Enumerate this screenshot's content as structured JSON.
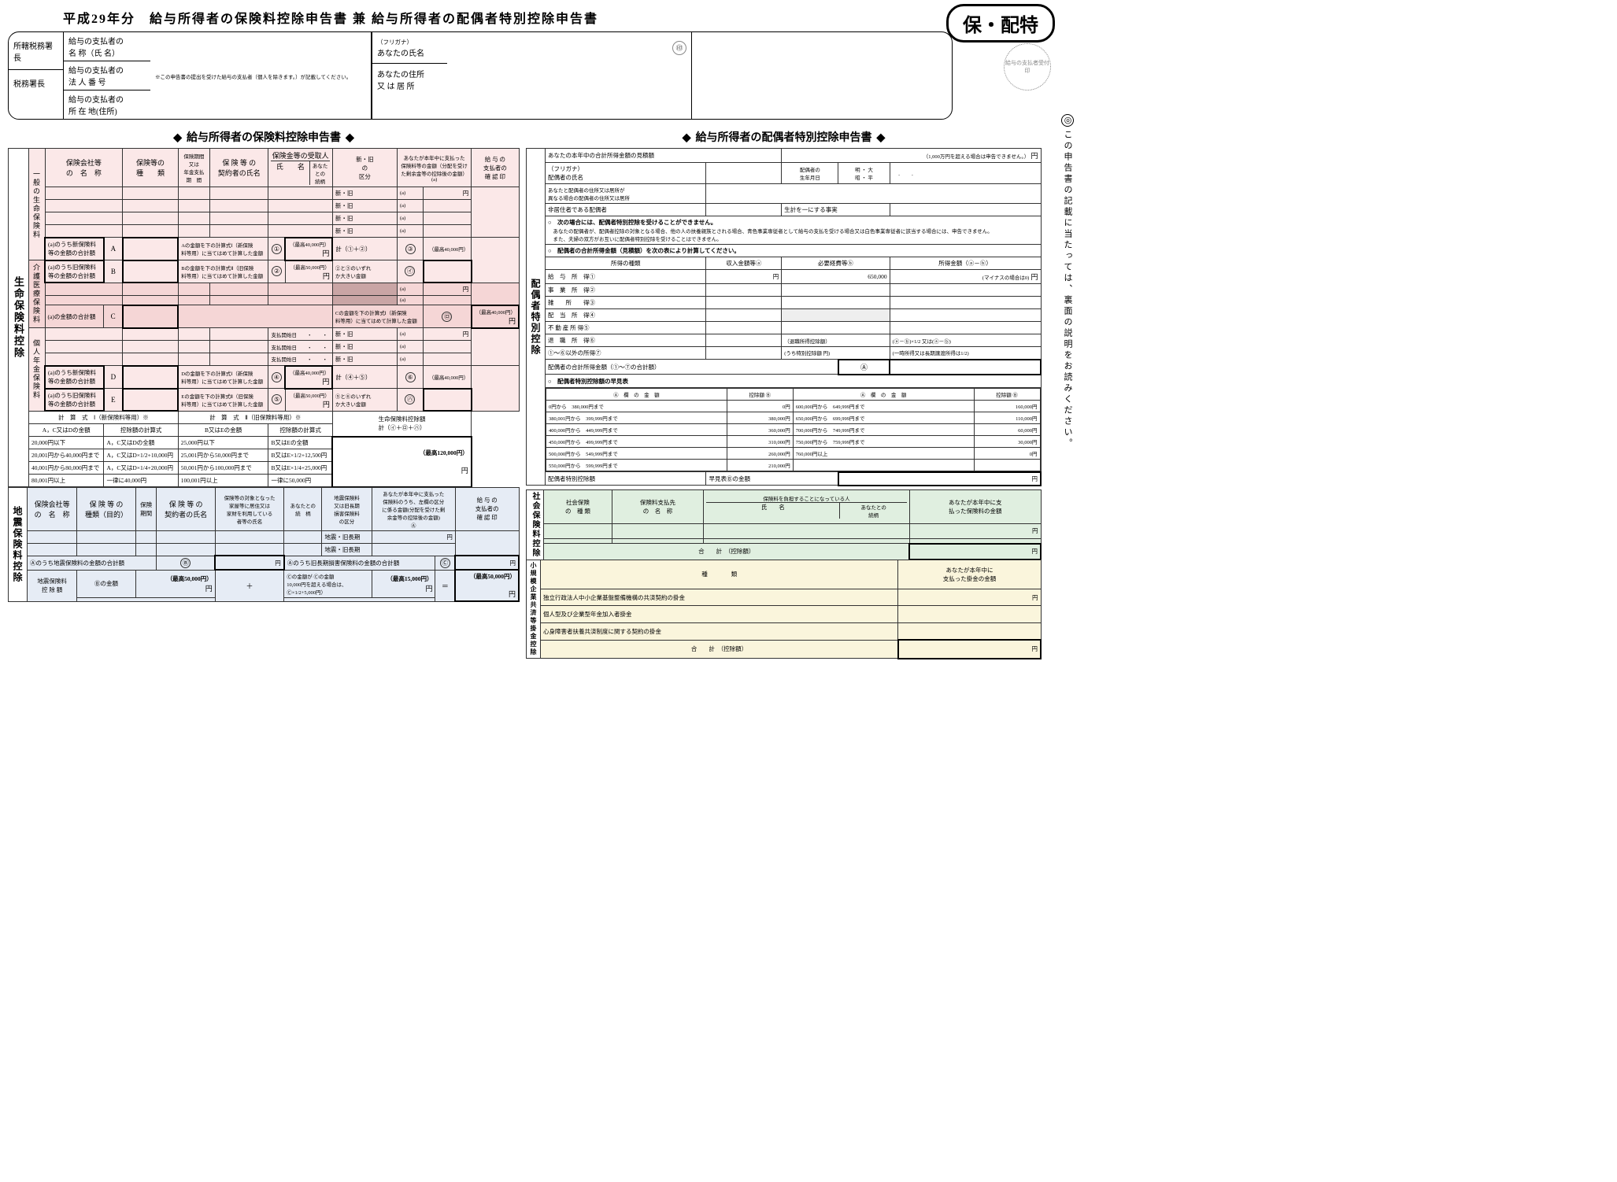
{
  "title": "平成29年分　給与所得者の保険料控除申告書 兼 給与所得者の配偶者特別控除申告書",
  "stamp": "保・配特",
  "seal_note": "給与の支払者受付印",
  "header": {
    "col1": {
      "r1": "所轄税務署長",
      "r2": "税務署長"
    },
    "col2": {
      "r1": "給与の支払者の\\n名 称（氏 名）",
      "r2": "給与の支払者の\\n法 人 番 号",
      "r3": "給与の支払者の\\n所 在 地(住所)",
      "note": "※この申告書の提出を受けた給与の支払者（個人を除きます。）が記載してください。"
    },
    "col3": {
      "r1a": "（フリガナ）",
      "r1b": "あなたの氏名",
      "r2": "あなたの住所\\n又 は 居 所",
      "seal": "㊞"
    }
  },
  "section_left_title": "給与所得者の保険料控除申告書",
  "section_right_title": "給与所得者の配偶者特別控除申告書",
  "vertical_note": "この申告書の記載に当たっては、裏面の説明をお読みください。",
  "life": {
    "side_label": "生命保険料控除",
    "sub_labels": {
      "general": "一般の生命保険料",
      "care": "介護医療保険料",
      "pension": "個人年金保険料"
    },
    "headers": {
      "h1": "保険会社等\\nの　名　称",
      "h2": "保険等の\\n種　　類",
      "h3": "保険期間\\n又は\\n年金支払\\n期　間",
      "h4": "保 険 等 の\\n契約者の氏名",
      "h5a": "保険金等の受取人",
      "h5b": "氏　　名",
      "h5c": "あなたとの\\n続柄",
      "h6": "新・旧\\nの\\n区分",
      "h7": "あなたが本年中に支払った\\n保険料等の金額（分配を受け\\nた剰余金等の控除後の金額）\\n(a)",
      "h8": "給 与 の\\n支払者の\\n確 認 印"
    },
    "new_old": "新・旧",
    "a_label": "(a)",
    "yen": "円",
    "rows_general": {
      "A": {
        "label": "(a)のうち新保険料\\n等の金額の合計額",
        "mark": "A"
      },
      "B": {
        "label": "(a)のうち旧保険料\\n等の金額の合計額",
        "mark": "B"
      },
      "A_calc": "Aの金額を下の計算式Ⅰ（新保険\\n料等用）に当てはめて計算した金額",
      "B_calc": "Bの金額を下の計算式Ⅱ（旧保険\\n料等用）に当てはめて計算した金額",
      "max1": "（最高40,000円）",
      "max2": "（最高50,000円）",
      "sum12": "計（①＋②）",
      "sum23": "②と③のいずれ\\nか大きい金額",
      "max3": "（最高40,000円）",
      "c1": "①",
      "c2": "②",
      "c3": "③",
      "ci": "㋑"
    },
    "rows_care": {
      "C": {
        "label": "(a)の金額の合計額",
        "mark": "C"
      },
      "C_calc": "Cの金額を下の計算式Ⅰ（新保険\\n料等用）に当てはめて計算した金額",
      "max": "（最高40,000円）",
      "cro": "㋺"
    },
    "pension_start": "支払開始日　　・　　・",
    "rows_pension": {
      "D": {
        "label": "(a)のうち新保険料\\n等の金額の合計額",
        "mark": "D"
      },
      "E": {
        "label": "(a)のうち旧保険料\\n等の金額の合計額",
        "mark": "E"
      },
      "D_calc": "Dの金額を下の計算式Ⅰ（新保険\\n料等用）に当てはめて計算した金額",
      "E_calc": "Eの金額を下の計算式Ⅱ（旧保険\\n料等用）に当てはめて計算した金額",
      "max1": "（最高40,000円）",
      "max2": "（最高50,000円）",
      "sum45": "計（④＋⑤）",
      "sum56": "⑤と⑥のいずれ\\nか大きい金額",
      "max3": "（最高40,000円）",
      "c4": "④",
      "c5": "⑤",
      "c6": "⑥",
      "cha": "㋩"
    },
    "calc_table": {
      "title1": "計　算　式　Ⅰ（新保険料等用）※",
      "title2": "計　算　式　Ⅱ（旧保険料等用）※",
      "total_label": "生命保険料控除額\\n計（㋑＋㋺＋㋩）",
      "total_max": "（最高120,000円）",
      "col1h": "A，C又はDの金額",
      "col2h": "控除額の計算式",
      "col3h": "B又はEの金額",
      "col4h": "控除額の計算式",
      "rows1": [
        [
          "20,000円以下",
          "A，C又はDの全額"
        ],
        [
          "20,001円から40,000円まで",
          "A，C又はD×1/2+10,000円"
        ],
        [
          "40,001円から80,000円まで",
          "A，C又はD×1/4+20,000円"
        ],
        [
          "80,001円以上",
          "一律に40,000円"
        ]
      ],
      "rows2": [
        [
          "25,000円以下",
          "B又はEの全額"
        ],
        [
          "25,001円から50,000円まで",
          "B又はE×1/2+12,500円"
        ],
        [
          "50,001円から100,000円まで",
          "B又はE×1/4+25,000円"
        ],
        [
          "100,001円以上",
          "一律に50,000円"
        ]
      ]
    }
  },
  "quake": {
    "side_label": "地震保険料控除",
    "headers": {
      "h1": "保険会社等\\nの　名　称",
      "h2": "保 険 等 の\\n種類（目的）",
      "h3": "保険\\n期間",
      "h4": "保 険 等 の\\n契約者の氏名",
      "h5a": "保険等の対象となった\\n家屋等に居住又は\\n家財を利用している\\n者等の氏名",
      "h5b": "あなたとの\\n続　柄",
      "h6": "地震保険料\\n又は旧長期\\n損害保険料\\nの区分",
      "h7": "あなたが本年中に支払った\\n保険料のうち、左欄の区分\\nに係る金額(分配を受けた剰\\n余金等の控除後の金額)\\nⒶ",
      "h8": "給 与 の\\n支払者の\\n確 認 印"
    },
    "opt": "地震・旧長期",
    "B_label": "Ⓐのうち地震保険料の金額の合計額",
    "B_mark": "Ⓑ",
    "C_label": "Ⓐのうち旧長期損害保険料の金額の合計額",
    "C_mark": "Ⓒ",
    "final": {
      "label": "地震保険料\\n控 除 額",
      "B_part": "Ⓑの金額",
      "B_max": "（最高50,000円）",
      "C_part": "Ⓒの金額\\n10,000円を超える場合は、\\nⒸ×1/2+5,000円）",
      "C_top": "Ⓒの金額が",
      "C_max": "（最高15,000円）",
      "eq": "＝",
      "plus": "＋",
      "total_max": "（最高50,000円）"
    }
  },
  "spouse": {
    "est_label": "あなたの本年中の合計所得金額の見積額",
    "est_note": "（1,000万円を超える場合は申告できません。）",
    "furigana": "（フリガナ）",
    "name_label": "配偶者の氏名",
    "birth_label": "配偶者の\\n生年月日",
    "era": "明 ・ 大\\n昭 ・ 平",
    "date_dots": "　.　　.　",
    "addr_label": "あなたと配偶者の住所又は居所が\\n異なる場合の配偶者の住所又は居所",
    "nonres_label": "非居住者である配偶者",
    "sameliv_label": "生計を一にする事実",
    "cannot_title": "○　次の場合には、配偶者特別控除を受けることができません。",
    "cannot_body": "　あなたの配偶者が、配偶者控除の対象となる場合、他の人の扶養親族とされる場合、青色事業専従者として給与の支払を受ける場合又は白色事業専従者に該当する場合には、申告できません。\\n　また、夫婦の双方がお互いに配偶者特別控除を受けることはできません。",
    "side_label": "配偶者特別控除",
    "calc_title": "○　配偶者の合計所得金額（見積額）を次の表により計算してください。",
    "calc_headers": {
      "h1": "所得の種類",
      "h2": "収入金額等ⓐ",
      "h3": "必要経費等ⓑ",
      "h4": "所得金額（ⓐ－ⓑ）"
    },
    "income_types": [
      "給　与　所　得①",
      "事　業　所　得②",
      "雑　　所　　得③",
      "配　当　所　得④",
      "不 動 産 所 得⑤",
      "退　職　所　得⑥",
      "①～⑥以外の所得⑦"
    ],
    "note6": "（退職所得控除額）",
    "formula6": "(ⓐ－ⓑ)×1/2 又は(ⓐ－ⓑ)",
    "note7a": "(うち特別控除額",
    "note7b": "(一時所得又は長期譲渡所得は1/2)",
    "value_b1": "650,000",
    "neg_note": "(マイナスの場合は0)",
    "total_label": "配偶者の合計所得金額（①～⑦の合計額）",
    "total_mark": "Ⓐ",
    "quick_title": "○　配偶者特別控除額の早見表",
    "quick_headers": {
      "a": "Ⓐ　欄　の　金　額",
      "b": "控除額 Ⓑ"
    },
    "quick_rows1": [
      [
        "0円から　380,000円まで",
        "0円"
      ],
      [
        "380,001円から　399,999円まで",
        "380,000円"
      ],
      [
        "400,000円から　449,999円まで",
        "360,000円"
      ],
      [
        "450,000円から　499,999円まで",
        "310,000円"
      ],
      [
        "500,000円から　549,999円まで",
        "260,000円"
      ],
      [
        "550,000円から　599,999円まで",
        "210,000円"
      ]
    ],
    "quick_rows2": [
      [
        "600,000円から　649,999円まで",
        "160,000円"
      ],
      [
        "650,000円から　699,999円まで",
        "110,000円"
      ],
      [
        "700,000円から　749,999円まで",
        "60,000円"
      ],
      [
        "750,000円から　759,999円まで",
        "30,000円"
      ],
      [
        "760,000円以上",
        "0円"
      ]
    ],
    "final_label": "配偶者特別控除額",
    "final_note": "早見表Ⓑの金額"
  },
  "social": {
    "side_label": "社会保険料控除",
    "headers": {
      "h1": "社会保険\\nの　種 類",
      "h2": "保険料支払先\\nの　名　称",
      "h3a": "保険料を負担することになっている人",
      "h3b": "氏　　名",
      "h3c": "あなたとの\\n続柄",
      "h4": "あなたが本年中に支\\n払った保険料の金額"
    },
    "total": "合　　計　（控除額）"
  },
  "small_biz": {
    "side_label": "小規模企業共済等掛金控除",
    "h1": "種　　　　類",
    "h2": "あなたが本年中に\\n支払った掛金の金額",
    "rows": [
      "独立行政法人中小企業基盤整備機構の共済契約の掛金",
      "個人型及び企業型年金加入者掛金",
      "心身障害者扶養共済制度に関する契約の掛金"
    ],
    "total": "合　　計　（控除額）"
  }
}
